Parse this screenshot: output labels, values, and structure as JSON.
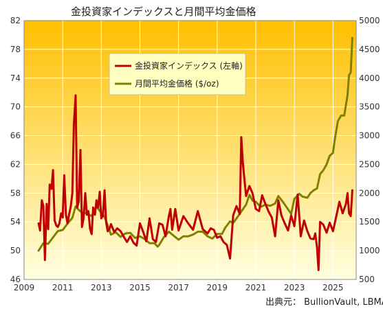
{
  "chart_data": {
    "type": "line",
    "title": "金投資家インデックスと月間平均金価格",
    "source": "出典元： BullionVault, LBMA",
    "x_ticks": [
      "2009",
      "2011",
      "2013",
      "2015",
      "2017",
      "2019",
      "2021",
      "2023",
      "2025"
    ],
    "x_range": [
      2009.0,
      2026.2
    ],
    "left_axis": {
      "ylim": [
        46,
        82
      ],
      "ticks": [
        "46",
        "50",
        "54",
        "58",
        "62",
        "66",
        "70",
        "74",
        "78",
        "82"
      ]
    },
    "right_axis": {
      "ylim": [
        500,
        5000
      ],
      "ticks": [
        "500",
        "1000",
        "1500",
        "2000",
        "2500",
        "3000",
        "3500",
        "4000",
        "4500",
        "5000"
      ]
    },
    "colors": {
      "index": "#c00000",
      "price": "#808000",
      "bg_top": "#ffbf00",
      "bg_bottom": "#ffffe0"
    },
    "legend_position": "top-center",
    "series": [
      {
        "name": "金投資家インデックス (左軸)",
        "axis": "left",
        "x": [
          2009.75,
          2009.83,
          2009.92,
          2010.0,
          2010.08,
          2010.17,
          2010.25,
          2010.33,
          2010.42,
          2010.5,
          2010.58,
          2010.67,
          2010.75,
          2010.83,
          2010.92,
          2011.0,
          2011.08,
          2011.17,
          2011.25,
          2011.33,
          2011.42,
          2011.5,
          2011.58,
          2011.67,
          2011.75,
          2011.83,
          2011.92,
          2012.0,
          2012.08,
          2012.17,
          2012.25,
          2012.33,
          2012.42,
          2012.5,
          2012.58,
          2012.67,
          2012.75,
          2012.83,
          2012.92,
          2013.0,
          2013.08,
          2013.17,
          2013.25,
          2013.33,
          2013.42,
          2013.5,
          2013.67,
          2013.83,
          2014.0,
          2014.17,
          2014.33,
          2014.5,
          2014.67,
          2014.83,
          2015.0,
          2015.17,
          2015.33,
          2015.5,
          2015.67,
          2015.83,
          2016.0,
          2016.17,
          2016.33,
          2016.5,
          2016.58,
          2016.67,
          2016.83,
          2017.0,
          2017.25,
          2017.5,
          2017.75,
          2018.0,
          2018.25,
          2018.5,
          2018.67,
          2018.83,
          2019.0,
          2019.17,
          2019.33,
          2019.5,
          2019.67,
          2019.83,
          2020.0,
          2020.17,
          2020.25,
          2020.33,
          2020.42,
          2020.5,
          2020.67,
          2020.83,
          2021.0,
          2021.17,
          2021.33,
          2021.5,
          2021.67,
          2021.83,
          2022.0,
          2022.17,
          2022.33,
          2022.5,
          2022.67,
          2022.83,
          2023.0,
          2023.17,
          2023.33,
          2023.5,
          2023.67,
          2023.83,
          2024.0,
          2024.08,
          2024.17,
          2024.25,
          2024.33,
          2024.5,
          2024.67,
          2024.83,
          2025.0,
          2025.17,
          2025.33,
          2025.5,
          2025.67,
          2025.75,
          2025.83,
          2025.92,
          2026.0
        ],
        "values": [
          53.8,
          52.8,
          57.0,
          56.2,
          48.7,
          56.5,
          53.0,
          59.2,
          58.6,
          61.2,
          54.2,
          53.5,
          53.3,
          53.8,
          55.2,
          54.6,
          60.5,
          55.0,
          53.8,
          55.0,
          56.2,
          58.0,
          67.5,
          71.6,
          56.0,
          56.8,
          64.0,
          53.3,
          54.5,
          58.0,
          55.0,
          55.5,
          53.0,
          52.3,
          56.0,
          55.0,
          57.0,
          56.0,
          58.2,
          54.5,
          54.8,
          58.4,
          54.0,
          52.7,
          53.0,
          53.7,
          52.6,
          53.1,
          52.7,
          51.9,
          51.2,
          52.0,
          51.1,
          50.7,
          53.8,
          52.6,
          51.3,
          54.5,
          51.6,
          51.2,
          53.8,
          53.6,
          52.0,
          54.8,
          55.8,
          52.9,
          55.8,
          52.8,
          54.8,
          53.8,
          52.9,
          55.5,
          53.0,
          52.4,
          53.1,
          52.9,
          51.8,
          52.0,
          51.2,
          50.8,
          48.9,
          54.9,
          56.2,
          55.1,
          65.8,
          62.2,
          59.7,
          57.6,
          59.0,
          58.0,
          55.8,
          55.5,
          57.7,
          56.5,
          55.4,
          54.6,
          52.0,
          57.0,
          54.9,
          53.8,
          52.8,
          54.9,
          53.4,
          57.8,
          52.0,
          54.2,
          52.7,
          51.7,
          51.6,
          52.4,
          50.5,
          47.3,
          54.0,
          53.6,
          52.5,
          53.9,
          52.7,
          54.8,
          56.8,
          55.2,
          56.5,
          58.0,
          55.2,
          54.8,
          58.4
        ]
      },
      {
        "name": "月間平均金価格 ($/oz)",
        "axis": "right",
        "x": [
          2009.75,
          2010.0,
          2010.25,
          2010.5,
          2010.75,
          2011.0,
          2011.25,
          2011.5,
          2011.67,
          2011.83,
          2012.0,
          2012.25,
          2012.5,
          2012.75,
          2012.92,
          2013.0,
          2013.17,
          2013.33,
          2013.5,
          2013.75,
          2014.0,
          2014.25,
          2014.5,
          2014.75,
          2015.0,
          2015.25,
          2015.5,
          2015.75,
          2015.92,
          2016.0,
          2016.25,
          2016.5,
          2016.75,
          2017.0,
          2017.25,
          2017.5,
          2017.75,
          2018.0,
          2018.25,
          2018.5,
          2018.75,
          2019.0,
          2019.25,
          2019.42,
          2019.67,
          2019.83,
          2020.0,
          2020.25,
          2020.5,
          2020.67,
          2020.83,
          2021.0,
          2021.25,
          2021.5,
          2021.75,
          2022.0,
          2022.17,
          2022.42,
          2022.67,
          2022.83,
          2023.0,
          2023.25,
          2023.42,
          2023.67,
          2023.83,
          2024.0,
          2024.17,
          2024.33,
          2024.5,
          2024.67,
          2024.83,
          2025.0,
          2025.08,
          2025.25,
          2025.42,
          2025.58,
          2025.75,
          2025.83,
          2025.92,
          2026.0
        ],
        "values": [
          1000,
          1130,
          1120,
          1230,
          1340,
          1360,
          1470,
          1570,
          1770,
          1710,
          1660,
          1650,
          1600,
          1770,
          1690,
          1660,
          1590,
          1440,
          1280,
          1320,
          1240,
          1300,
          1310,
          1220,
          1250,
          1200,
          1130,
          1130,
          1070,
          1100,
          1240,
          1330,
          1260,
          1190,
          1250,
          1250,
          1280,
          1330,
          1330,
          1250,
          1210,
          1290,
          1290,
          1400,
          1510,
          1480,
          1560,
          1680,
          1800,
          1970,
          1870,
          1850,
          1760,
          1800,
          1780,
          1820,
          1950,
          1840,
          1720,
          1640,
          1900,
          1990,
          1940,
          1920,
          2000,
          2050,
          2080,
          2330,
          2400,
          2500,
          2650,
          2700,
          2900,
          3250,
          3350,
          3350,
          3700,
          4050,
          4100,
          4700
        ]
      }
    ]
  }
}
